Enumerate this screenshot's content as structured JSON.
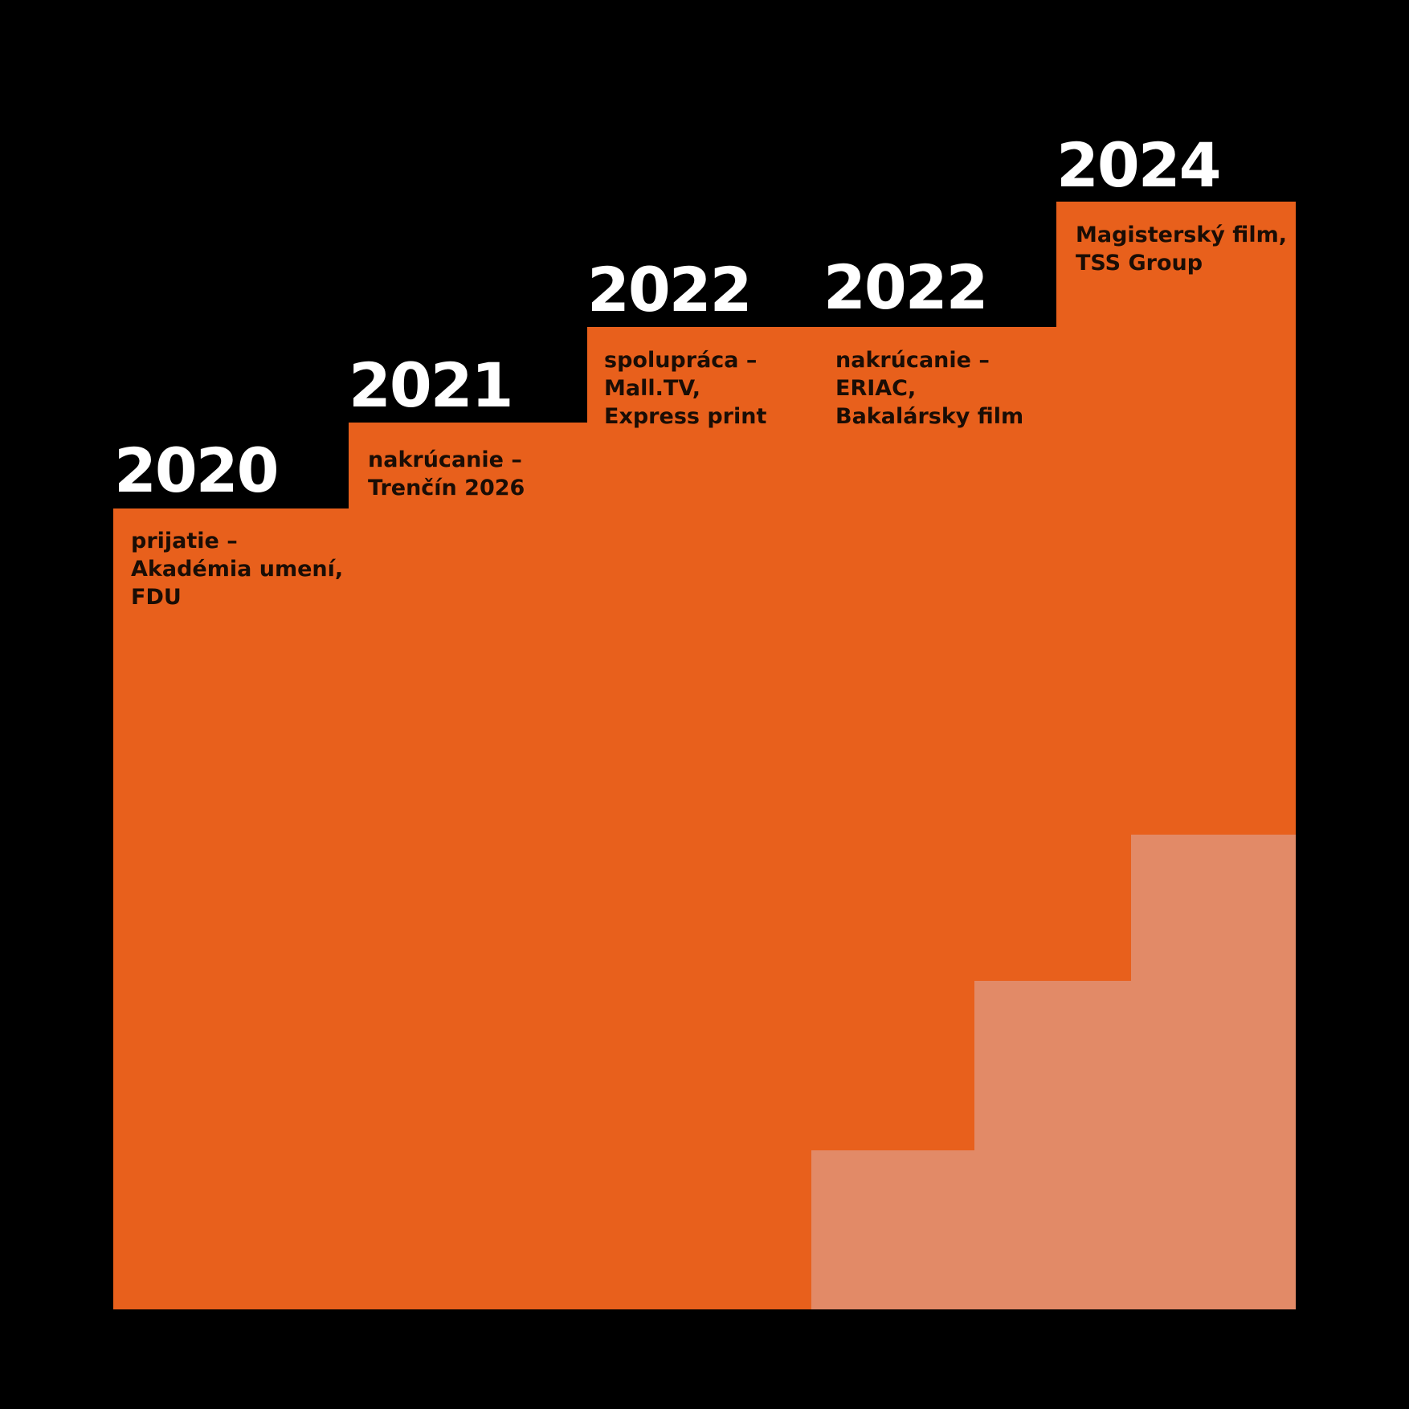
{
  "colors": {
    "background": "#000000",
    "step": "#E8601C",
    "step_light": "#E28A67",
    "year_text": "#FFFFFF",
    "description_text": "#1A0D05"
  },
  "milestones": [
    {
      "year": "2020",
      "lines": [
        "prijatie –",
        "Akadémia umení,",
        "FDU"
      ]
    },
    {
      "year": "2021",
      "lines": [
        "nakrúcanie –",
        "Trenčín 2026"
      ]
    },
    {
      "year": "2022",
      "lines": [
        "spolupráca –",
        "Mall.TV,",
        "Express print"
      ]
    },
    {
      "year": "2022",
      "lines": [
        "nakrúcanie –",
        "ERIAC,",
        "Bakalársky film"
      ]
    },
    {
      "year": "2024",
      "lines": [
        "Magisterský film,",
        "TSS Group"
      ]
    }
  ]
}
